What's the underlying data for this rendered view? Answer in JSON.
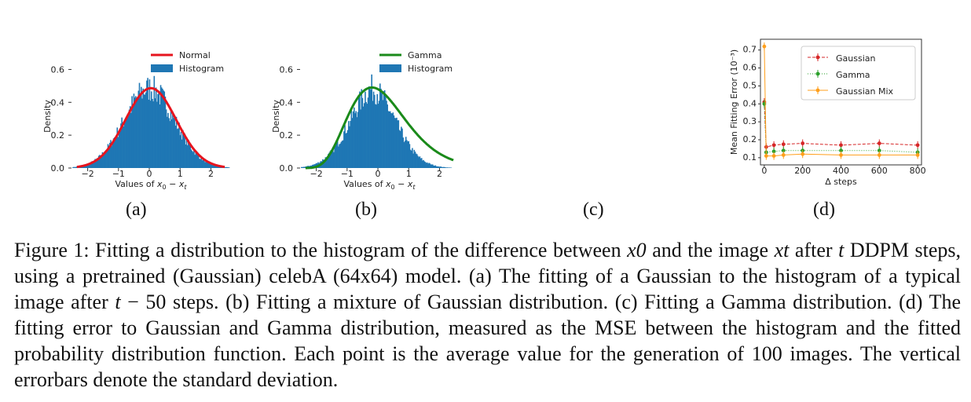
{
  "figure": {
    "subfigure_labels": [
      "(a)",
      "(b)",
      "(c)",
      "(d)"
    ],
    "caption": {
      "prefix": "Figure 1: Fitting a distribution to the histogram of the difference between ",
      "x0": "x0",
      "mid": " and the image ",
      "xt": "xt",
      "after": " after ",
      "t": "t",
      "rest1": " DDPM steps, using a pretrained (Gaussian) celebA (64x64) model. (a) The fitting of a Gaussian to the histogram of a typical image after ",
      "t2": "t",
      "rest2": " − 50 steps. (b) Fitting a mixture of Gaussian distribution. (c) Fitting a Gamma distribution. (d) The fitting error to Gaussian and Gamma distribution, measured as the MSE between the histogram and the fitted probability distribution function. Each point is the average value for the generation of 100 images. The vertical errorbars denote the standard deviation."
    }
  },
  "chart_data": [
    {
      "type": "area",
      "id": "a",
      "xlabel": "Values of x0 − xt",
      "ylabel": "Density",
      "x_ticks": [
        -2,
        -1,
        0,
        1,
        2
      ],
      "y_ticks": [
        "0.0",
        "0.2",
        "0.4",
        "0.6"
      ],
      "xlim": [
        -2.5,
        2.6
      ],
      "ylim": [
        0,
        0.65
      ],
      "legend_position": "top-right",
      "series": [
        {
          "name": "Normal",
          "kind": "curve",
          "color": "#e6141e",
          "mean": 0.05,
          "std": 0.82
        },
        {
          "name": "Histogram",
          "kind": "histogram",
          "color": "#1f77b4",
          "mean": 0.0,
          "std": 0.82,
          "peak": 0.55
        }
      ]
    },
    {
      "type": "area",
      "id": "b",
      "xlabel": "Values of x0 − xt",
      "ylabel": "Density",
      "x_ticks": [
        -2,
        -1,
        0,
        1,
        2
      ],
      "y_ticks": [
        "0.0",
        "0.2",
        "0.4",
        "0.6"
      ],
      "xlim": [
        -2.5,
        2.6
      ],
      "ylim": [
        0,
        0.65
      ],
      "legend_position": "top-right",
      "series": [
        {
          "name": "Gamma",
          "kind": "curve",
          "color": "#1a8a1a",
          "mode": -0.3,
          "peak": 0.49
        },
        {
          "name": "Histogram",
          "kind": "histogram",
          "color": "#1f77b4",
          "mean": -0.2,
          "std": 0.8,
          "peak": 0.55
        }
      ]
    },
    {
      "type": "line",
      "id": "d",
      "xlabel": "Δ steps",
      "ylabel": "Mean Fitting Error (10⁻³)",
      "x_ticks": [
        0,
        200,
        400,
        600,
        800
      ],
      "y_ticks": [
        "0.1",
        "0.2",
        "0.3",
        "0.4",
        "0.5",
        "0.6",
        "0.7"
      ],
      "xlim": [
        -20,
        820
      ],
      "ylim": [
        0.06,
        0.76
      ],
      "legend_position": "top-right",
      "x": [
        0,
        10,
        50,
        100,
        200,
        400,
        600,
        800
      ],
      "series": [
        {
          "name": "Gaussian",
          "color": "#d62728",
          "style": "dashed",
          "values": [
            0.41,
            0.16,
            0.17,
            0.175,
            0.18,
            0.17,
            0.18,
            0.17
          ]
        },
        {
          "name": "Gamma",
          "color": "#2ca02c",
          "style": "dotted",
          "values": [
            0.4,
            0.13,
            0.135,
            0.14,
            0.14,
            0.14,
            0.14,
            0.13
          ]
        },
        {
          "name": "Gaussian Mix",
          "color": "#ff9f1c",
          "style": "solid",
          "values": [
            0.72,
            0.11,
            0.11,
            0.115,
            0.12,
            0.115,
            0.115,
            0.115
          ]
        }
      ]
    }
  ]
}
